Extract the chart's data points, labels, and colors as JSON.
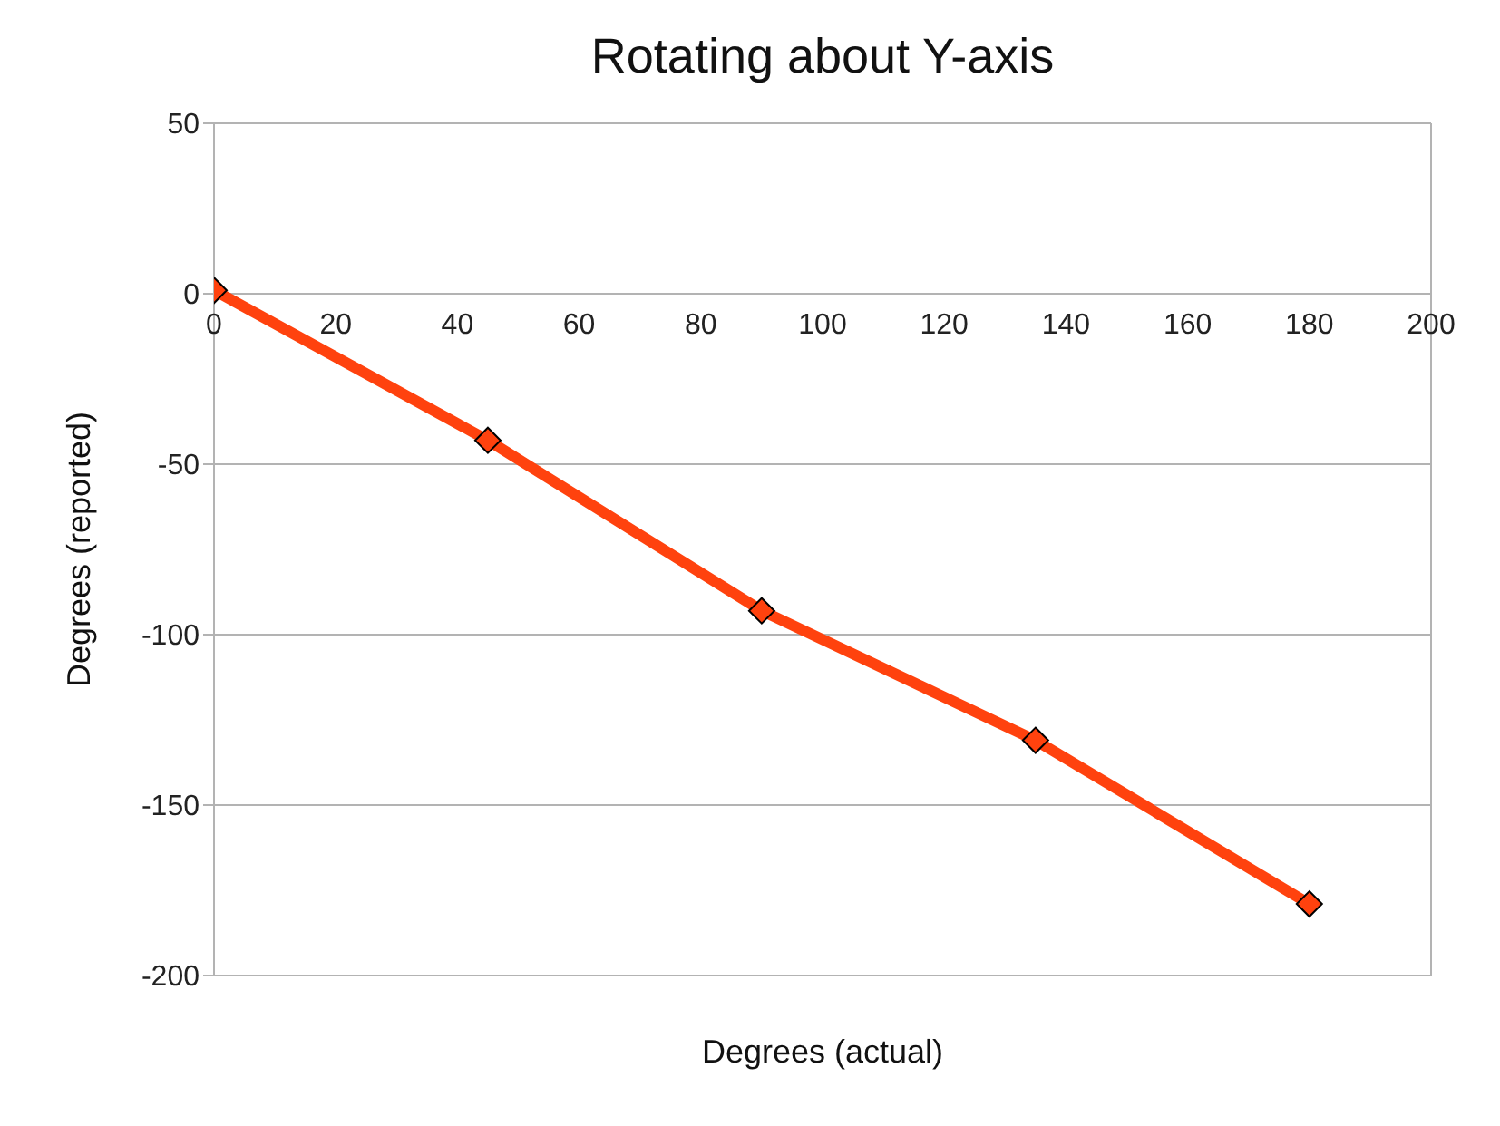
{
  "chart_data": {
    "type": "line",
    "title": "Rotating about Y-axis",
    "xlabel": "Degrees (actual)",
    "ylabel": "Degrees (reported)",
    "x": [
      0,
      45,
      90,
      135,
      180
    ],
    "series": [
      {
        "color": "#ff420e",
        "values": [
          1,
          -43,
          -93,
          -131,
          -179
        ]
      }
    ],
    "xlim": [
      0,
      200
    ],
    "xticks": [
      0,
      20,
      40,
      60,
      80,
      100,
      120,
      140,
      160,
      180,
      200
    ],
    "ylim": [
      -200,
      50
    ],
    "yticks": [
      -200,
      -150,
      -100,
      -50,
      0,
      50
    ],
    "grid": "y",
    "legend": false,
    "marker": "diamond",
    "line_style": "solid"
  }
}
